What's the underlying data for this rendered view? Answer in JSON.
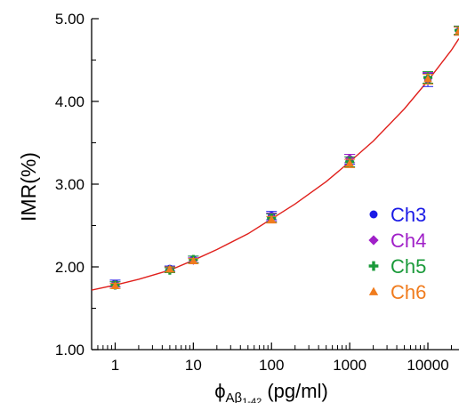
{
  "chart_data": {
    "type": "scatter",
    "xscale": "log",
    "xlim": [
      0.5,
      25000
    ],
    "ylim": [
      1.0,
      5.0
    ],
    "ylabel": "IMR(%)",
    "xlabel": {
      "prefix": "ϕ",
      "sub_main": "Aβ",
      "sub_sub": "1-42",
      "unit": " (pg/ml)"
    },
    "x_ticks": [
      {
        "value": 1,
        "label": "1"
      },
      {
        "value": 10,
        "label": "10"
      },
      {
        "value": 100,
        "label": "100"
      },
      {
        "value": 1000,
        "label": "1000"
      },
      {
        "value": 10000,
        "label": "10000"
      }
    ],
    "y_ticks": [
      {
        "value": 1.0,
        "label": "1.00"
      },
      {
        "value": 2.0,
        "label": "2.00"
      },
      {
        "value": 3.0,
        "label": "3.00"
      },
      {
        "value": 4.0,
        "label": "4.00"
      },
      {
        "value": 5.0,
        "label": "5.00"
      }
    ],
    "y_minor_ticks": [
      1.5,
      2.5,
      3.5,
      4.5
    ],
    "legend_position": "right-middle",
    "series": [
      {
        "name": "Ch3",
        "marker": "circle",
        "color": "#1a1ae6",
        "x": [
          1,
          5,
          10,
          100,
          1000,
          10000,
          25000
        ],
        "y": [
          1.8,
          1.98,
          2.09,
          2.62,
          3.3,
          4.26,
          4.85
        ],
        "err": [
          0.04,
          0.03,
          0.04,
          0.05,
          0.06,
          0.08,
          0.05
        ]
      },
      {
        "name": "Ch4",
        "marker": "diamond",
        "color": "#a020c8",
        "x": [
          1,
          5,
          10,
          100,
          1000,
          10000,
          25000
        ],
        "y": [
          1.79,
          1.97,
          2.08,
          2.6,
          3.31,
          4.28,
          4.86
        ],
        "err": [
          0.03,
          0.03,
          0.03,
          0.05,
          0.05,
          0.07,
          0.05
        ]
      },
      {
        "name": "Ch5",
        "marker": "plus",
        "color": "#1a9a3a",
        "x": [
          1,
          5,
          10,
          100,
          1000,
          10000,
          25000
        ],
        "y": [
          1.78,
          1.96,
          2.09,
          2.59,
          3.27,
          4.29,
          4.86
        ],
        "err": [
          0.04,
          0.03,
          0.04,
          0.05,
          0.06,
          0.07,
          0.05
        ]
      },
      {
        "name": "Ch6",
        "marker": "triangle",
        "color": "#f07c1e",
        "x": [
          1,
          5,
          10,
          100,
          1000,
          10000,
          25000
        ],
        "y": [
          1.77,
          1.97,
          2.07,
          2.57,
          3.25,
          4.27,
          4.85
        ],
        "err": [
          0.03,
          0.03,
          0.03,
          0.04,
          0.05,
          0.06,
          0.05
        ]
      }
    ],
    "fit": {
      "color": "#e0201c",
      "x": [
        0.5,
        1,
        2,
        5,
        10,
        20,
        50,
        100,
        200,
        500,
        1000,
        2000,
        5000,
        10000,
        20000,
        25000
      ],
      "y": [
        1.72,
        1.78,
        1.85,
        1.96,
        2.08,
        2.21,
        2.4,
        2.58,
        2.76,
        3.03,
        3.27,
        3.52,
        3.91,
        4.25,
        4.62,
        4.76
      ]
    }
  }
}
